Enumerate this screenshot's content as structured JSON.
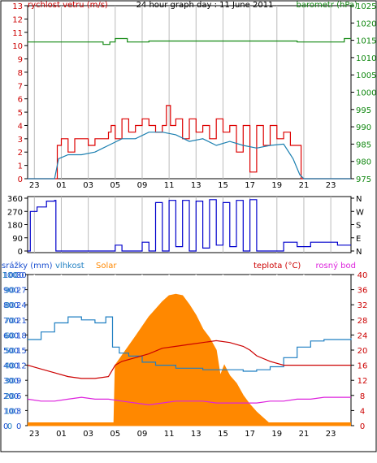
{
  "colors": {
    "wind": "#dd0000",
    "wind_avg": "#1a7fb0",
    "pressure": "#118811",
    "direction": "#0000cc",
    "temperature": "#cc0000",
    "humidity": "#1f7fc2",
    "solar": "#ff8800",
    "dewpoint": "#dd22dd",
    "rain": "#1a4fd0",
    "axis": "#000000",
    "grid": "#bbbbbb"
  },
  "x_ticks": [
    "23",
    "01",
    "03",
    "05",
    "09",
    "11",
    "13",
    "15",
    "17",
    "19",
    "21",
    "23"
  ],
  "top_panel": {
    "title": "24 hour graph day : 11 June 2011",
    "left_label": "rychlost vetru (m/s)",
    "right_label": "barometr (hPa)",
    "left_ticks": [
      "0",
      "1",
      "2",
      "3",
      "4",
      "5",
      "6",
      "7",
      "8",
      "9",
      "10",
      "11",
      "12",
      "13"
    ],
    "right_ticks": [
      "975",
      "980",
      "985",
      "990",
      "995",
      "1000",
      "1005",
      "1010",
      "1015",
      "1020",
      "1025"
    ]
  },
  "middle_panel": {
    "left_ticks": [
      "0",
      "90",
      "180",
      "270",
      "360"
    ],
    "right_ticks": [
      "N",
      "E",
      "S",
      "W",
      "N"
    ]
  },
  "bottom_panel": {
    "label_rain": "srážky (mm)",
    "label_humidity": "vlhkost",
    "label_solar": "Solar",
    "label_temperature": "teplota (°C)",
    "label_dewpoint": "rosný bod",
    "solar_ticks": [
      "0",
      "100",
      "200",
      "300",
      "400",
      "500",
      "600",
      "700",
      "800",
      "900",
      "1000"
    ],
    "rain_ticks": [
      "0",
      "3",
      "6",
      "9",
      "12",
      "15",
      "18",
      "21",
      "24",
      "27",
      "30"
    ],
    "humidity_ticks": [
      "0",
      "10",
      "20",
      "30",
      "40",
      "50",
      "60",
      "70",
      "80",
      "90",
      "100"
    ],
    "temp_ticks": [
      "0",
      "4",
      "8",
      "12",
      "16",
      "20",
      "24",
      "28",
      "32",
      "36",
      "40"
    ]
  },
  "chart_data": [
    {
      "type": "line",
      "title": "24 hour graph day : 11 June 2011",
      "x_hours_ticks": [
        "23",
        "01",
        "03",
        "05",
        "09",
        "11",
        "13",
        "15",
        "17",
        "19",
        "21",
        "23"
      ],
      "series": [
        {
          "name": "rychlost vetru",
          "axis": "left",
          "points": [
            [
              0,
              0
            ],
            [
              1.5,
              0
            ],
            [
              2.0,
              0
            ],
            [
              2.2,
              2.5
            ],
            [
              2.5,
              3
            ],
            [
              3,
              2
            ],
            [
              3.5,
              3
            ],
            [
              4,
              3
            ],
            [
              4.5,
              2.5
            ],
            [
              5,
              3
            ],
            [
              5.5,
              3
            ],
            [
              6,
              3.5
            ],
            [
              6.2,
              4
            ],
            [
              6.5,
              3
            ],
            [
              7,
              4.5
            ],
            [
              7.5,
              3.5
            ],
            [
              8,
              4
            ],
            [
              8.5,
              4.5
            ],
            [
              9,
              4
            ],
            [
              9.5,
              3.5
            ],
            [
              10,
              4
            ],
            [
              10.3,
              5.5
            ],
            [
              10.6,
              4
            ],
            [
              11,
              4.5
            ],
            [
              11.5,
              3
            ],
            [
              12,
              4.5
            ],
            [
              12.5,
              3.5
            ],
            [
              13,
              4
            ],
            [
              13.5,
              3
            ],
            [
              14,
              4.5
            ],
            [
              14.5,
              3.5
            ],
            [
              15,
              4
            ],
            [
              15.5,
              2
            ],
            [
              16,
              4
            ],
            [
              16.5,
              0.5
            ],
            [
              17,
              4
            ],
            [
              17.5,
              2.5
            ],
            [
              18,
              4
            ],
            [
              18.5,
              3
            ],
            [
              19,
              3.5
            ],
            [
              19.5,
              2.5
            ],
            [
              20,
              2.5
            ],
            [
              20.3,
              0
            ],
            [
              21,
              0
            ],
            [
              24,
              0
            ]
          ]
        },
        {
          "name": "rychlost vetru prumer",
          "axis": "left",
          "points": [
            [
              0,
              0
            ],
            [
              2.0,
              0
            ],
            [
              2.3,
              1.5
            ],
            [
              3,
              1.8
            ],
            [
              4,
              1.8
            ],
            [
              5,
              2
            ],
            [
              6,
              2.5
            ],
            [
              7,
              3
            ],
            [
              8,
              3
            ],
            [
              9,
              3.5
            ],
            [
              10,
              3.5
            ],
            [
              11,
              3.3
            ],
            [
              12,
              2.8
            ],
            [
              13,
              3
            ],
            [
              14,
              2.5
            ],
            [
              15,
              2.8
            ],
            [
              16,
              2.5
            ],
            [
              17,
              2.3
            ],
            [
              18,
              2.5
            ],
            [
              19,
              2.6
            ],
            [
              19.7,
              1.5
            ],
            [
              20.2,
              0.3
            ],
            [
              20.5,
              0
            ],
            [
              24,
              0
            ]
          ]
        },
        {
          "name": "barometr",
          "axis": "right",
          "points": [
            [
              0,
              1014.5
            ],
            [
              5.5,
              1014.5
            ],
            [
              5.6,
              1013.8
            ],
            [
              6.1,
              1014.5
            ],
            [
              6.5,
              1015.5
            ],
            [
              7.3,
              1015.5
            ],
            [
              7.4,
              1014.5
            ],
            [
              9,
              1014.8
            ],
            [
              10,
              1014.8
            ],
            [
              20,
              1014.5
            ],
            [
              23.5,
              1015.5
            ],
            [
              24,
              1015.5
            ]
          ]
        }
      ],
      "left_range": [
        0,
        13
      ],
      "right_range": [
        975,
        1025
      ]
    },
    {
      "type": "line",
      "series": [
        {
          "name": "smer vetru",
          "points": [
            [
              0,
              0
            ],
            [
              0.2,
              270
            ],
            [
              0.7,
              300
            ],
            [
              1.4,
              340
            ],
            [
              2.0,
              345
            ],
            [
              2.1,
              0
            ],
            [
              6.5,
              0
            ],
            [
              6.5,
              40
            ],
            [
              7,
              0
            ],
            [
              8,
              0
            ],
            [
              8.5,
              60
            ],
            [
              9,
              0
            ],
            [
              9.5,
              330
            ],
            [
              10,
              0
            ],
            [
              10.5,
              345
            ],
            [
              11,
              30
            ],
            [
              11.5,
              345
            ],
            [
              12,
              0
            ],
            [
              12.5,
              340
            ],
            [
              13,
              20
            ],
            [
              13.5,
              350
            ],
            [
              14,
              40
            ],
            [
              14.5,
              330
            ],
            [
              15,
              30
            ],
            [
              15.5,
              345
            ],
            [
              16,
              0
            ],
            [
              16.5,
              350
            ],
            [
              17,
              0
            ],
            [
              18.5,
              0
            ],
            [
              19,
              60
            ],
            [
              20,
              30
            ],
            [
              21,
              60
            ],
            [
              22.5,
              60
            ],
            [
              23,
              40
            ],
            [
              24,
              40
            ]
          ]
        }
      ],
      "left_range": [
        0,
        360
      ]
    },
    {
      "type": "area",
      "series": [
        {
          "name": "Solar",
          "axis": "solar",
          "points": [
            [
              0,
              0
            ],
            [
              6.4,
              0
            ],
            [
              6.5,
              400
            ],
            [
              8,
              590
            ],
            [
              9,
              720
            ],
            [
              10,
              820
            ],
            [
              10.5,
              860
            ],
            [
              11,
              870
            ],
            [
              11.5,
              860
            ],
            [
              12,
              800
            ],
            [
              12.5,
              730
            ],
            [
              13,
              640
            ],
            [
              13.5,
              580
            ],
            [
              14,
              500
            ],
            [
              14.3,
              330
            ],
            [
              14.6,
              400
            ],
            [
              15,
              330
            ],
            [
              15.5,
              280
            ],
            [
              16,
              200
            ],
            [
              16.5,
              140
            ],
            [
              17,
              90
            ],
            [
              17.5,
              50
            ],
            [
              18,
              10
            ],
            [
              18.5,
              0
            ],
            [
              24,
              0
            ]
          ]
        },
        {
          "name": "teplota",
          "axis": "temp",
          "points": [
            [
              0,
              16
            ],
            [
              1,
              15
            ],
            [
              2,
              14
            ],
            [
              3,
              13
            ],
            [
              4,
              12.5
            ],
            [
              5,
              12.5
            ],
            [
              6,
              13
            ],
            [
              6.5,
              16
            ],
            [
              7,
              17
            ],
            [
              8,
              18
            ],
            [
              9,
              19
            ],
            [
              10,
              20.5
            ],
            [
              11,
              21
            ],
            [
              12,
              21.5
            ],
            [
              13,
              22
            ],
            [
              14,
              22.5
            ],
            [
              15,
              22
            ],
            [
              16,
              21
            ],
            [
              16.5,
              20
            ],
            [
              17,
              18.5
            ],
            [
              18,
              17
            ],
            [
              19,
              16
            ],
            [
              20,
              16
            ],
            [
              24,
              16
            ]
          ]
        },
        {
          "name": "vlhkost",
          "axis": "humidity",
          "points": [
            [
              0,
              57
            ],
            [
              1,
              62
            ],
            [
              2,
              68
            ],
            [
              3,
              72
            ],
            [
              4,
              70
            ],
            [
              5,
              68
            ],
            [
              5.8,
              72
            ],
            [
              6.2,
              72
            ],
            [
              6.3,
              52
            ],
            [
              6.8,
              48
            ],
            [
              7.5,
              46
            ],
            [
              8.5,
              42
            ],
            [
              9.5,
              40
            ],
            [
              11,
              38
            ],
            [
              13,
              37
            ],
            [
              15,
              37
            ],
            [
              16,
              36
            ],
            [
              17,
              37
            ],
            [
              18,
              39
            ],
            [
              19,
              45
            ],
            [
              20,
              52
            ],
            [
              21,
              56
            ],
            [
              22,
              57
            ],
            [
              24,
              58
            ]
          ]
        },
        {
          "name": "rosný bod",
          "axis": "temp",
          "points": [
            [
              0,
              7
            ],
            [
              1,
              6.5
            ],
            [
              2,
              6.5
            ],
            [
              3,
              7
            ],
            [
              4,
              7.5
            ],
            [
              5,
              7
            ],
            [
              6,
              7
            ],
            [
              7,
              6.5
            ],
            [
              8,
              6
            ],
            [
              9,
              5.5
            ],
            [
              10,
              6
            ],
            [
              11,
              6.5
            ],
            [
              12,
              6.5
            ],
            [
              13,
              6.5
            ],
            [
              14,
              6
            ],
            [
              15,
              6
            ],
            [
              16,
              6
            ],
            [
              17,
              6
            ],
            [
              18,
              6.5
            ],
            [
              19,
              6.5
            ],
            [
              20,
              7
            ],
            [
              21,
              7
            ],
            [
              22,
              7.5
            ],
            [
              24,
              7.5
            ]
          ]
        },
        {
          "name": "srážky",
          "axis": "rain",
          "points": [
            [
              0,
              0
            ],
            [
              24,
              0
            ]
          ]
        }
      ],
      "solar_range": [
        0,
        1000
      ],
      "rain_range": [
        0,
        30
      ],
      "humidity_range": [
        0,
        100
      ],
      "temp_range": [
        0,
        40
      ]
    }
  ]
}
